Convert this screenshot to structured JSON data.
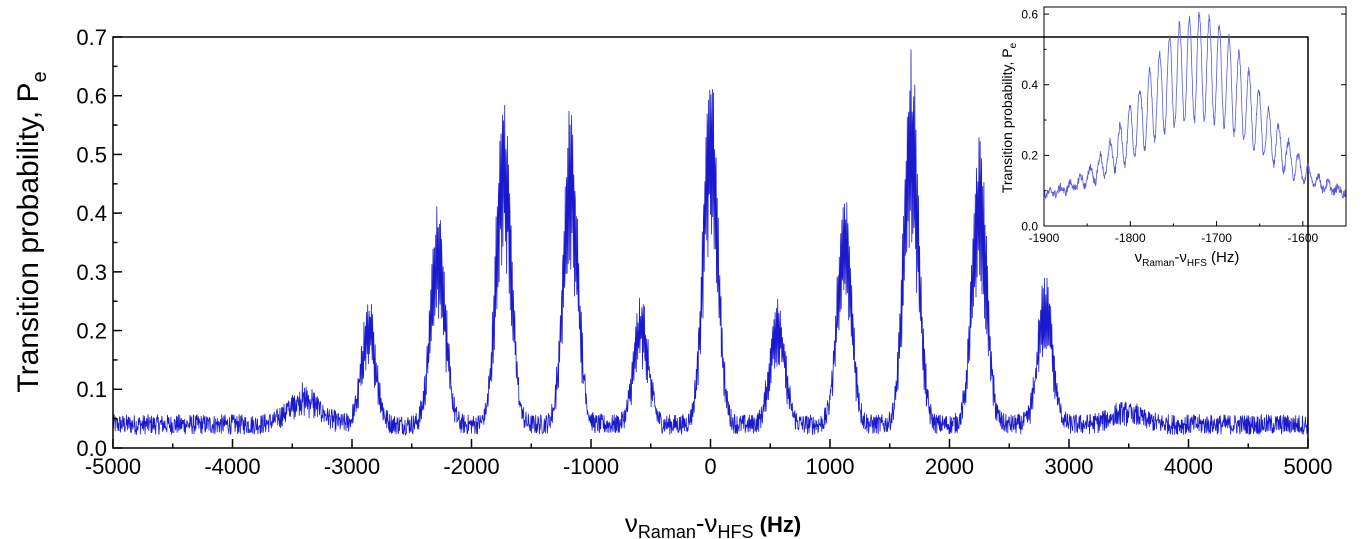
{
  "chart_data": [
    {
      "type": "line",
      "title": "",
      "xlabel": {
        "main": "ν",
        "sub1": "Raman",
        "dash": "-ν",
        "sub2": "HFS",
        "unit": " (Hz)"
      },
      "ylabel": {
        "main": "Transition probability, P",
        "sub": "e"
      },
      "xlim": [
        -5000,
        5000
      ],
      "ylim": [
        0,
        0.7
      ],
      "xticks": [
        "-5000",
        "-4000",
        "-3000",
        "-2000",
        "-1000",
        "0",
        "1000",
        "2000",
        "3000",
        "4000",
        "5000"
      ],
      "yticks": [
        "0.0",
        "0.1",
        "0.2",
        "0.3",
        "0.4",
        "0.5",
        "0.6",
        "0.7"
      ],
      "grid": false,
      "color": "#1a1acc",
      "series": [
        {
          "baseline": 0.04,
          "noise_amplitude": 0.035,
          "peaks": [
            {
              "x": -3400,
              "y": 0.095
            },
            {
              "x": -2860,
              "y": 0.24
            },
            {
              "x": -2280,
              "y": 0.41
            },
            {
              "x": -1730,
              "y": 0.6
            },
            {
              "x": -1170,
              "y": 0.56
            },
            {
              "x": -580,
              "y": 0.25
            },
            {
              "x": 0,
              "y": 0.64
            },
            {
              "x": 560,
              "y": 0.25
            },
            {
              "x": 1120,
              "y": 0.43
            },
            {
              "x": 1680,
              "y": 0.65
            },
            {
              "x": 2250,
              "y": 0.51
            },
            {
              "x": 2800,
              "y": 0.29
            },
            {
              "x": 3480,
              "y": 0.065
            }
          ]
        }
      ]
    },
    {
      "type": "line",
      "title": "",
      "xlabel": {
        "main": "ν",
        "sub1": "Raman",
        "dash": "-ν",
        "sub2": "HFS",
        "unit": " (Hz)"
      },
      "ylabel": {
        "main": "Transition probability, P",
        "sub": "e"
      },
      "xlim": [
        -1900,
        -1550
      ],
      "ylim": [
        0,
        0.62
      ],
      "xticks": [
        "-1900",
        "-1800",
        "-1700",
        "-1600"
      ],
      "yticks": [
        "0.0",
        "0.2",
        "0.4",
        "0.6"
      ],
      "grid": false,
      "color": "#5a5ad8",
      "series": [
        {
          "envelope_center": -1720,
          "envelope_peak": 0.6,
          "envelope_baseline": 0.08,
          "oscillation_period_hz": 11.5
        }
      ]
    }
  ]
}
